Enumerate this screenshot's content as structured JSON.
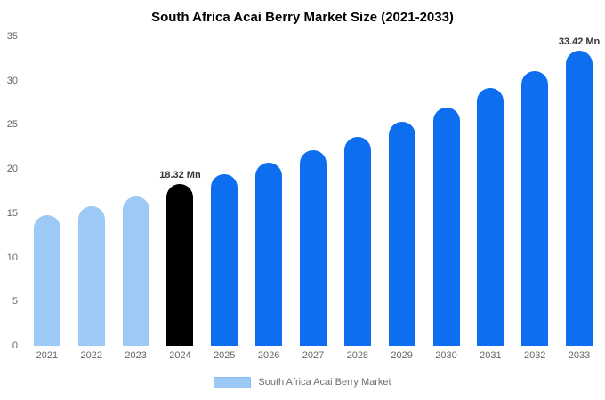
{
  "chart_data": {
    "type": "bar",
    "title": "South Africa Acai Berry Market Size (2021-2033)",
    "categories": [
      "2021",
      "2022",
      "2023",
      "2024",
      "2025",
      "2026",
      "2027",
      "2028",
      "2029",
      "2030",
      "2031",
      "2032",
      "2033"
    ],
    "values": [
      14.8,
      15.8,
      16.9,
      18.32,
      19.4,
      20.7,
      22.1,
      23.6,
      25.3,
      27.0,
      29.2,
      31.1,
      33.42
    ],
    "unit": "Mn",
    "ylim": [
      0,
      35
    ],
    "yticks": [
      0,
      5,
      10,
      15,
      20,
      25,
      30,
      35
    ],
    "grid": false,
    "bar_colors": [
      "#9DC9F6",
      "#9DC9F6",
      "#9DC9F6",
      "#000000",
      "#0D6EF0",
      "#0D6EF0",
      "#0D6EF0",
      "#0D6EF0",
      "#0D6EF0",
      "#0D6EF0",
      "#0D6EF0",
      "#0D6EF0",
      "#0D6EF0"
    ],
    "colors": {
      "historical": "#9DC9F6",
      "base_year": "#000000",
      "forecast": "#0D6EF0"
    },
    "annotations": [
      {
        "category": "2024",
        "text": "18.32 Mn"
      },
      {
        "category": "2033",
        "text": "33.42 Mn"
      }
    ],
    "legend_position": "bottom",
    "legend": [
      {
        "label": "South Africa Acai Berry Market",
        "color": "#9DC9F6"
      }
    ]
  }
}
